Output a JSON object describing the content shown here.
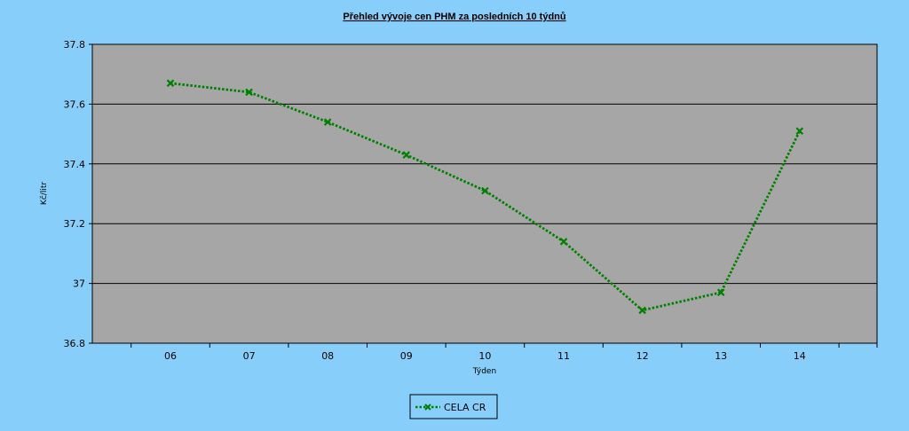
{
  "chart_data": {
    "type": "line",
    "title": "Přehled vývoje cen PHM za posledních 10 týdnů",
    "xlabel": "Týden",
    "ylabel": "Kč/litr",
    "categories": [
      "06",
      "07",
      "08",
      "09",
      "10",
      "11",
      "12",
      "13",
      "14"
    ],
    "ylim": [
      36.8,
      37.8
    ],
    "yticks": [
      36.8,
      37,
      37.2,
      37.4,
      37.6,
      37.8
    ],
    "ytick_labels": [
      "36.8",
      "37",
      "37.2",
      "37.4",
      "37.6",
      "37.8"
    ],
    "grid": true,
    "legend_position": "bottom-center",
    "series": [
      {
        "name": "CELA CR",
        "color": "#008000",
        "marker": "x",
        "line_style": "dotted",
        "values": [
          37.67,
          37.64,
          37.54,
          37.43,
          37.31,
          37.14,
          36.91,
          36.97,
          37.51
        ]
      }
    ],
    "colors": {
      "background": "#87cefa",
      "plot_area": "#a6a6a6",
      "gridline": "#000000"
    }
  }
}
